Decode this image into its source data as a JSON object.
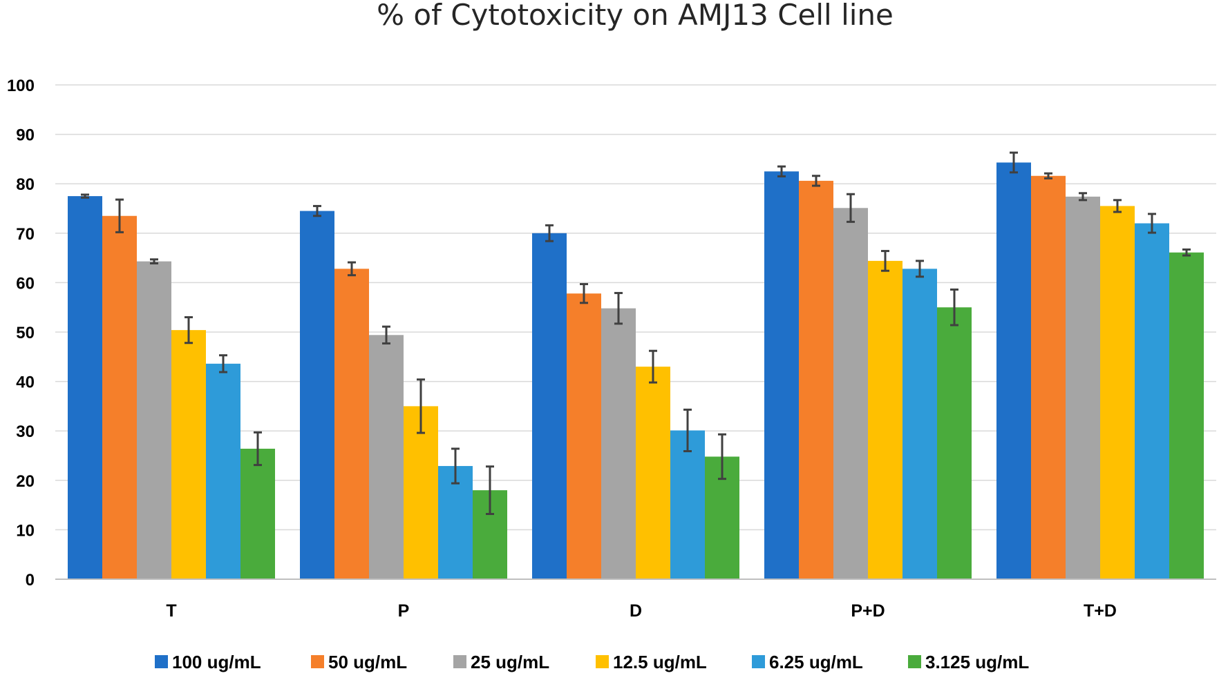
{
  "chart_data": {
    "type": "bar",
    "title": "% of Cytotoxicity on AMJ13 Cell line",
    "xlabel": "",
    "ylabel": "",
    "ylim": [
      0,
      100
    ],
    "yticks": [
      0,
      10,
      20,
      30,
      40,
      50,
      60,
      70,
      80,
      90,
      100
    ],
    "grid": true,
    "legend_position": "bottom",
    "categories": [
      "T",
      "P",
      "D",
      "P+D",
      "T+D"
    ],
    "series": [
      {
        "name": "100 ug/mL",
        "color": "#1f70c8",
        "values": [
          77.5,
          74.5,
          70.0,
          82.5,
          84.3
        ],
        "errors": [
          0.3,
          1.0,
          1.6,
          1.0,
          2.0
        ]
      },
      {
        "name": "50 ug/mL",
        "color": "#f57f2a",
        "values": [
          73.5,
          62.8,
          57.8,
          80.6,
          81.6
        ],
        "errors": [
          3.3,
          1.3,
          1.9,
          1.0,
          0.5
        ]
      },
      {
        "name": "25 ug/mL",
        "color": "#a5a5a5",
        "values": [
          64.3,
          49.4,
          54.8,
          75.1,
          77.4
        ],
        "errors": [
          0.4,
          1.7,
          3.1,
          2.8,
          0.7
        ]
      },
      {
        "name": "12.5 ug/mL",
        "color": "#ffc000",
        "values": [
          50.4,
          35.0,
          43.0,
          64.4,
          75.5
        ],
        "errors": [
          2.6,
          5.4,
          3.2,
          2.0,
          1.2
        ]
      },
      {
        "name": "6.25 ug/mL",
        "color": "#2e9bd9",
        "values": [
          43.6,
          22.9,
          30.1,
          62.8,
          72.0
        ],
        "errors": [
          1.7,
          3.5,
          4.2,
          1.6,
          1.9
        ]
      },
      {
        "name": "3.125 ug/mL",
        "color": "#4aab3c",
        "values": [
          26.4,
          18.0,
          24.8,
          55.0,
          66.1
        ],
        "errors": [
          3.3,
          4.8,
          4.5,
          3.6,
          0.6
        ]
      }
    ]
  }
}
